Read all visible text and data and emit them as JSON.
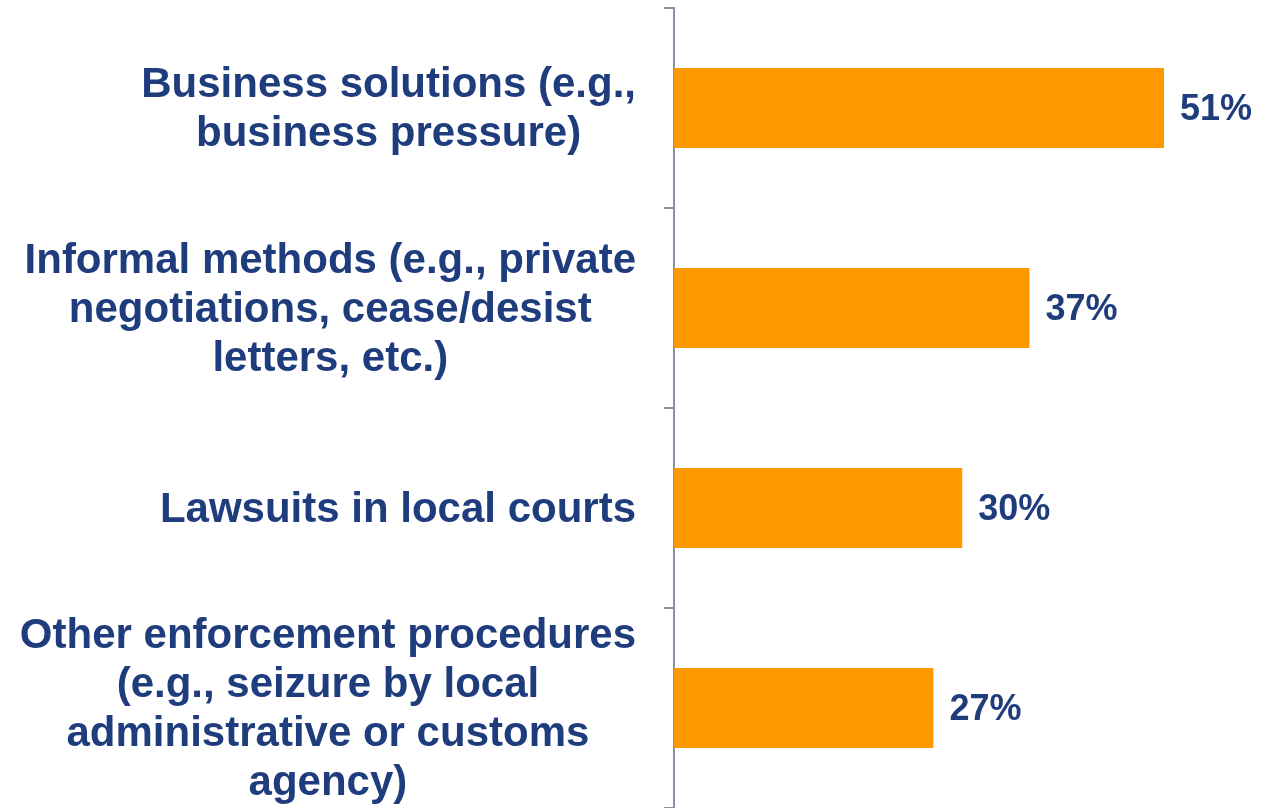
{
  "chart_data": {
    "type": "bar",
    "orientation": "horizontal",
    "categories": [
      "Business solutions (e.g., business pressure)",
      "Informal methods (e.g., private negotiations, cease/desist letters, etc.)",
      "Lawsuits in local courts",
      "Other enforcement procedures (e.g., seizure by local administrative or customs agency)"
    ],
    "values": [
      51,
      37,
      30,
      27
    ],
    "value_labels": [
      "51%",
      "37%",
      "30%",
      "27%"
    ],
    "color": "#ff9900",
    "legend": false
  }
}
